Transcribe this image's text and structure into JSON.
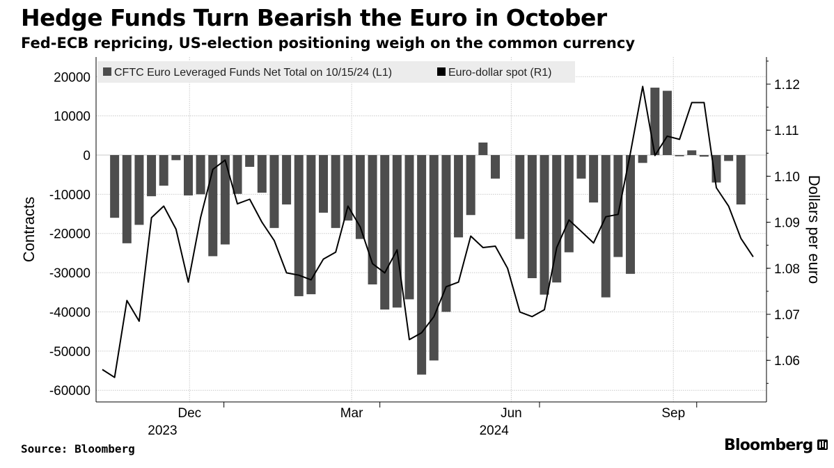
{
  "header": {
    "title": "Hedge Funds Turn Bearish the Euro in October",
    "subtitle": "Fed-ECB repricing, US-election positioning weigh on the common currency"
  },
  "footer": {
    "source": "Source: Bloomberg",
    "brand": "Bloomberg"
  },
  "colors": {
    "bar": "#4d4d4d",
    "line": "#000000",
    "grid": "#c9c9c9",
    "legend_bg": "#ececec"
  },
  "chart_data": {
    "type": "bar+line",
    "left_axis": {
      "label": "Contracts",
      "range": [
        -60000,
        20000
      ],
      "ticks": [
        "20000",
        "10000",
        "0",
        "-10000",
        "-20000",
        "-30000",
        "-40000",
        "-50000",
        "-60000"
      ],
      "tick_values": [
        20000,
        10000,
        0,
        -10000,
        -20000,
        -30000,
        -40000,
        -50000,
        -60000
      ]
    },
    "right_axis": {
      "label": "Dollars per euro",
      "range": [
        1.05,
        1.125
      ],
      "ticks": [
        "1.12",
        "1.11",
        "1.10",
        "1.09",
        "1.08",
        "1.07",
        "1.06"
      ],
      "tick_values": [
        1.12,
        1.11,
        1.1,
        1.09,
        1.08,
        1.07,
        1.06
      ]
    },
    "x_axis": {
      "month_labels": [
        {
          "label": "Dec",
          "week": 7.1
        },
        {
          "label": "Mar",
          "week": 20.3
        },
        {
          "label": "Jun",
          "week": 33.3
        },
        {
          "label": "Sep",
          "week": 46.5
        }
      ],
      "year_labels": [
        {
          "label": "2023",
          "week": 4.9
        },
        {
          "label": "2024",
          "week": 31.9
        }
      ],
      "separators": [
        9.9,
        22.6,
        35.6,
        48.4
      ],
      "weeks": 55
    },
    "legend": [
      {
        "label": "CFTC Euro Leveraged Funds Net Total on 10/15/24 (L1)",
        "kind": "bar"
      },
      {
        "label": "Euro-dollar spot (R1)",
        "kind": "line"
      }
    ],
    "series": [
      {
        "name": "CFTC Euro Leveraged Funds Net Total on 10/15/24 (L1)",
        "axis": "left",
        "x": [
          1,
          2,
          3,
          4,
          5,
          6,
          7,
          8,
          9,
          10,
          11,
          12,
          13,
          14,
          15,
          16,
          17,
          18,
          19,
          20,
          21,
          22,
          23,
          24,
          25,
          26,
          27,
          28,
          29,
          30,
          31,
          32,
          33,
          34,
          35,
          36,
          37,
          38,
          39,
          40,
          41,
          42,
          43,
          44,
          45,
          46,
          47,
          48,
          49,
          50,
          51,
          52,
          53
        ],
        "values": [
          -16000,
          -22500,
          -17800,
          -10500,
          -7800,
          -1300,
          -10300,
          -10000,
          -25800,
          -22800,
          -9900,
          -3000,
          -9600,
          -18600,
          -12600,
          -36000,
          -35500,
          -14700,
          -18600,
          -16700,
          -21400,
          -33000,
          -39400,
          -38900,
          -36800,
          -56000,
          -52400,
          -40000,
          -21000,
          -15300,
          3200,
          -6000,
          0,
          -21400,
          -31400,
          -35600,
          -32500,
          -24800,
          -6000,
          -12100,
          -36300,
          -26000,
          -30300,
          -2000,
          17200,
          16400,
          -300,
          1200,
          -400,
          -7000,
          -1500,
          -12600,
          0
        ]
      },
      {
        "name": "Euro-dollar spot (R1)",
        "axis": "right",
        "x": [
          0,
          1,
          2,
          3,
          4,
          5,
          6,
          7,
          8,
          9,
          10,
          11,
          12,
          13,
          14,
          15,
          16,
          17,
          18,
          19,
          20,
          21,
          22,
          23,
          24,
          25,
          26,
          27,
          28,
          29,
          30,
          31,
          32,
          33,
          34,
          35,
          36,
          37,
          38,
          39,
          40,
          41,
          42,
          43,
          44,
          45,
          46,
          47,
          48,
          49,
          50,
          51,
          52,
          53
        ],
        "values": [
          1.058,
          1.0563,
          1.073,
          1.0685,
          1.091,
          1.0935,
          1.0885,
          1.077,
          1.091,
          1.1015,
          1.1035,
          1.094,
          1.095,
          1.09,
          1.086,
          1.079,
          1.0785,
          1.0775,
          1.082,
          1.0835,
          1.0935,
          1.089,
          1.081,
          1.079,
          1.084,
          1.0645,
          1.066,
          1.0695,
          1.076,
          1.077,
          1.087,
          1.0845,
          1.0848,
          1.08,
          1.0705,
          1.0695,
          1.071,
          1.0845,
          1.0905,
          1.088,
          1.0855,
          1.0912,
          1.0917,
          1.105,
          1.1195,
          1.1045,
          1.1087,
          1.108,
          1.116,
          1.116,
          1.0975,
          1.0935,
          1.0865,
          1.0825
        ]
      }
    ]
  }
}
